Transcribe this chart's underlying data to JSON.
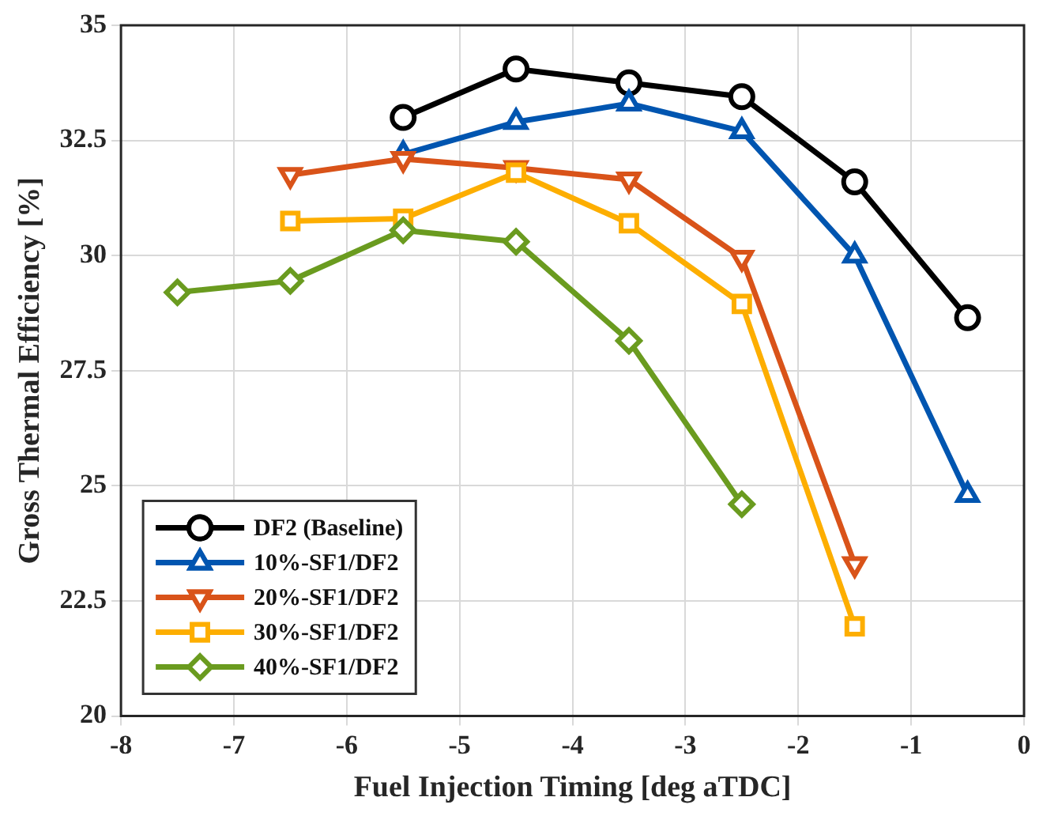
{
  "chart_data": {
    "type": "line",
    "xlabel": "Fuel Injection Timing [deg aTDC]",
    "ylabel": "Gross Thermal Efficiency [%]",
    "xlim": [
      -8,
      0
    ],
    "xticks": [
      -8,
      -7,
      -6,
      -5,
      -4,
      -3,
      -2,
      -1,
      0
    ],
    "ylim": [
      20,
      35
    ],
    "yticks": [
      20,
      22.5,
      25,
      27.5,
      30,
      32.5,
      35
    ],
    "grid": true,
    "legend": "bottom left",
    "line_style": "solid",
    "series": [
      {
        "name": "DF2 (Baseline)",
        "color": "#000000",
        "marker": "circle",
        "x": [
          -5.5,
          -4.5,
          -3.5,
          -2.5,
          -1.5,
          -0.5
        ],
        "values": [
          33.0,
          34.05,
          33.75,
          33.45,
          31.6,
          28.65
        ]
      },
      {
        "name": "10%-SF1/DF2",
        "color": "#0055b0",
        "marker": "triangle",
        "x": [
          -5.5,
          -4.5,
          -3.5,
          -2.5,
          -1.5,
          -0.5
        ],
        "values": [
          32.2,
          32.9,
          33.3,
          32.7,
          30.0,
          24.8
        ]
      },
      {
        "name": "20%-SF1/DF2",
        "color": "#d95319",
        "marker": "triangle-down",
        "x": [
          -6.5,
          -5.5,
          -4.5,
          -3.5,
          -2.5,
          -1.5
        ],
        "values": [
          31.75,
          32.1,
          31.9,
          31.65,
          29.95,
          23.3
        ]
      },
      {
        "name": "30%-SF1/DF2",
        "color": "#fdae00",
        "marker": "square",
        "x": [
          -6.5,
          -5.5,
          -4.5,
          -3.5,
          -2.5,
          -1.5
        ],
        "values": [
          30.75,
          30.8,
          31.8,
          30.7,
          28.95,
          21.95
        ]
      },
      {
        "name": "40%-SF1/DF2",
        "color": "#6a9b1f",
        "marker": "diamond",
        "x": [
          -7.5,
          -6.5,
          -5.5,
          -4.5,
          -3.5,
          -2.5
        ],
        "values": [
          29.2,
          29.45,
          30.55,
          30.3,
          28.15,
          24.6
        ]
      }
    ]
  }
}
